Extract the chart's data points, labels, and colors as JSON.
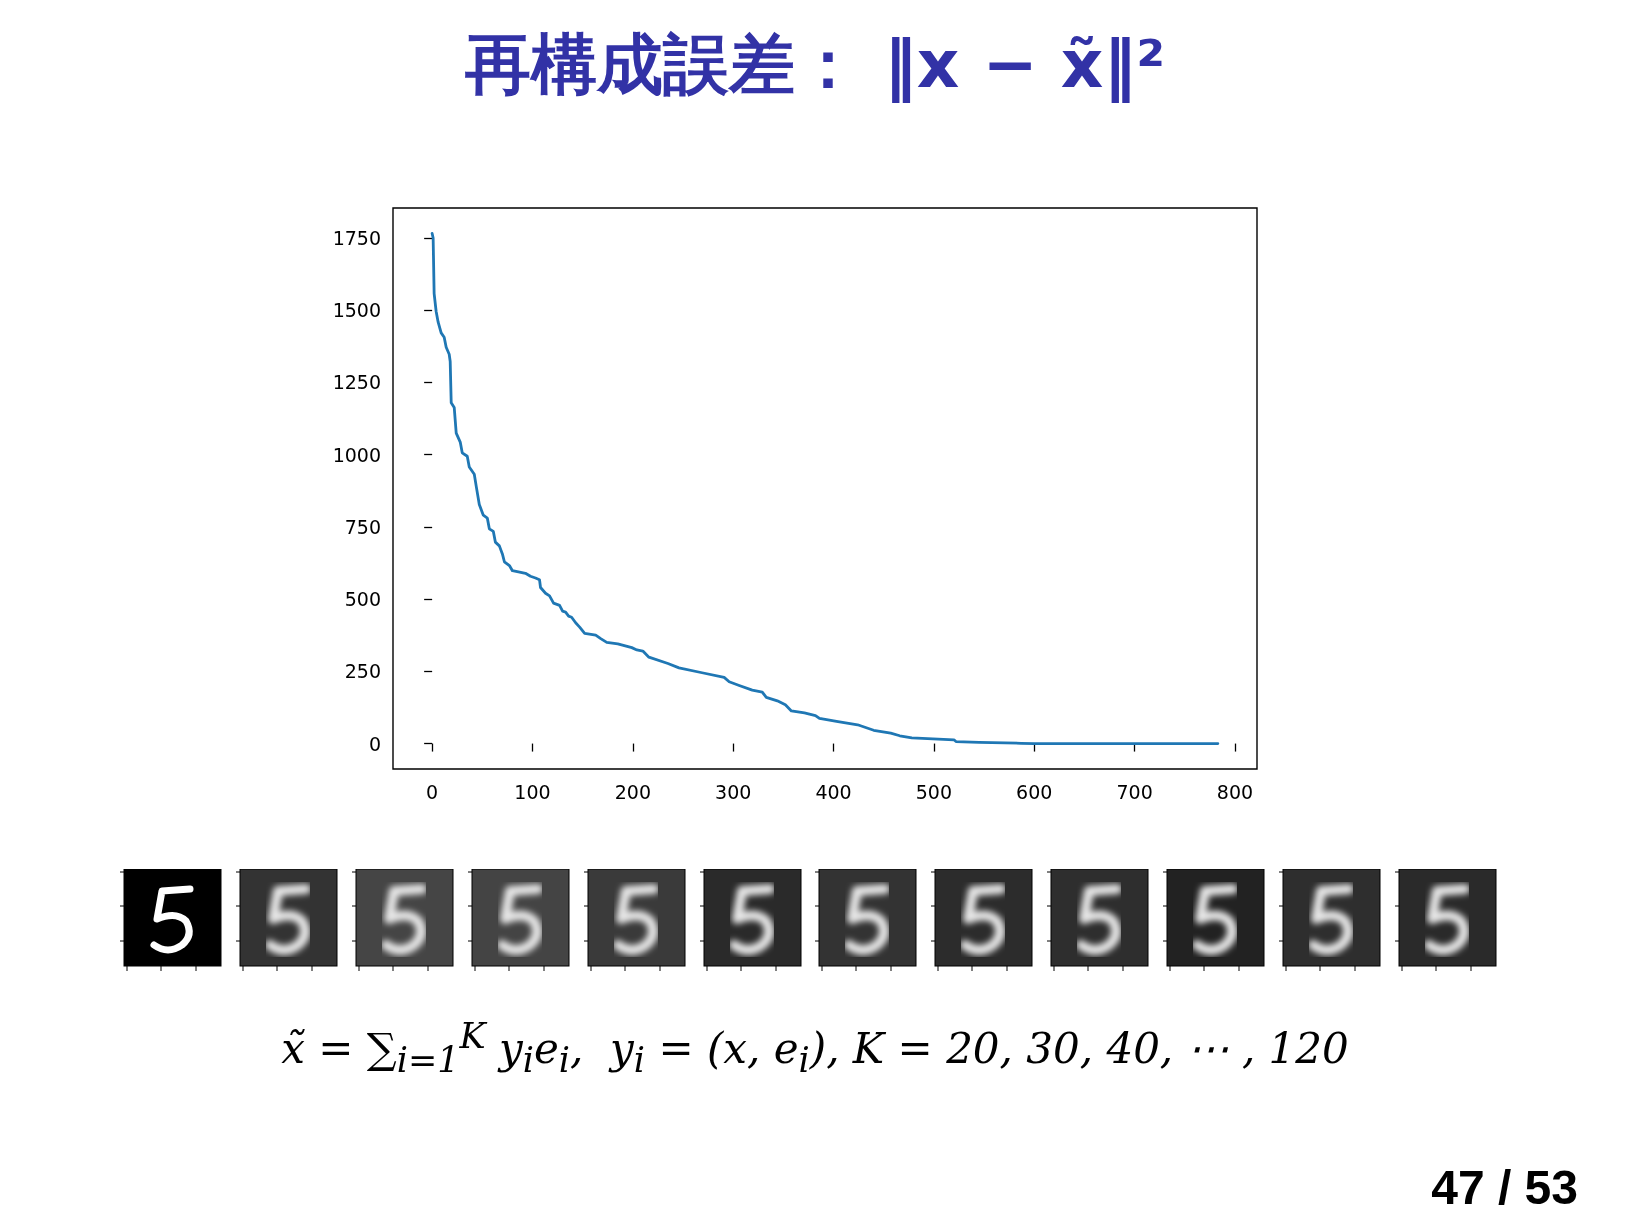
{
  "chart_data": {
    "type": "line",
    "title": "再構成誤差： ‖x − x̃‖²",
    "x": [
      0,
      1,
      2,
      4,
      6,
      9,
      12,
      14,
      17,
      18,
      19,
      22,
      24,
      28,
      30,
      35,
      37,
      42,
      44,
      47,
      51,
      55,
      57,
      61,
      63,
      67,
      70,
      72,
      77,
      80,
      86,
      93,
      98,
      103,
      107,
      108,
      113,
      117,
      121,
      127,
      130,
      133,
      136,
      139,
      143,
      147,
      152,
      163,
      168,
      174,
      185,
      199,
      204,
      210,
      216,
      235,
      246,
      269,
      291,
      296,
      306,
      319,
      329,
      333,
      344,
      352,
      358,
      371,
      382,
      386,
      403,
      424,
      440,
      457,
      466,
      478,
      499,
      520,
      522,
      545,
      587,
      600,
      700,
      783
    ],
    "series": [
      {
        "color": "#1f77b4",
        "values": [
          1765,
          1749,
          1557,
          1495,
          1458,
          1421,
          1406,
          1371,
          1347,
          1322,
          1179,
          1163,
          1074,
          1043,
          1006,
          994,
          957,
          932,
          889,
          827,
          790,
          780,
          743,
          734,
          697,
          684,
          656,
          629,
          616,
          598,
          594,
          589,
          579,
          573,
          567,
          540,
          520,
          511,
          486,
          478,
          458,
          455,
          441,
          437,
          418,
          403,
          381,
          375,
          363,
          350,
          345,
          332,
          324,
          320,
          299,
          277,
          262,
          245,
          229,
          214,
          201,
          185,
          178,
          160,
          148,
          134,
          113,
          106,
          97,
          87,
          77,
          65,
          46,
          36,
          27,
          20,
          16,
          13,
          7,
          4,
          1,
          0,
          0,
          0
        ]
      }
    ],
    "xlim": [
      -39,
      822
    ],
    "ylim": [
      -88,
      1853
    ],
    "xticks": [
      0,
      100,
      200,
      300,
      400,
      500,
      600,
      700,
      800
    ],
    "yticks": [
      0,
      250,
      500,
      750,
      1000,
      1250,
      1500,
      1750
    ],
    "line_style": "solid",
    "annotations": [
      "x̃ = ∑$_{i=1}$$^{K}$ y$_{i}$e$_{i}$,  y$_{i}$ = (x, e$_{i}$), K = 20, 30, 40, ⋯ , 120",
      "47 / 53"
    ]
  }
}
